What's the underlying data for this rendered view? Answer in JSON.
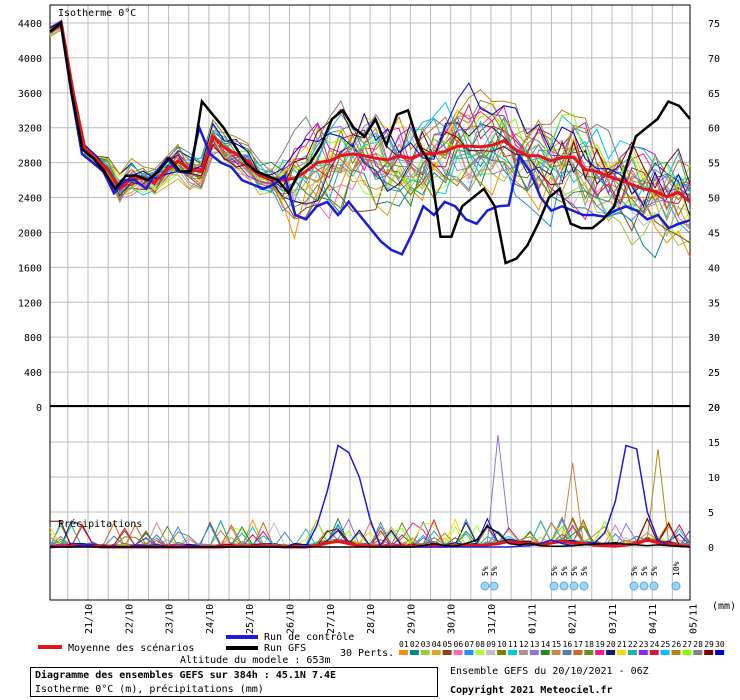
{
  "chart_data": [
    {
      "type": "line",
      "title": "Isotherme 0°C",
      "y_left_range": [
        0,
        4400
      ],
      "y_left_ticks": [
        0,
        400,
        800,
        1200,
        1600,
        2000,
        2400,
        2800,
        3200,
        3600,
        4000,
        4400
      ],
      "y_right_ticks": [
        20,
        25,
        30,
        35,
        40,
        45,
        50,
        55,
        60,
        65,
        70,
        75
      ],
      "x_labels": [
        "21/10",
        "22/10",
        "23/10",
        "24/10",
        "25/10",
        "26/10",
        "27/10",
        "28/10",
        "29/10",
        "30/10",
        "31/10",
        "01/11",
        "02/11",
        "03/11",
        "04/11",
        "05/11"
      ],
      "grid": true,
      "series": [
        {
          "name": "Moyenne des scénarios",
          "color": "#e8141b",
          "values": [
            4300,
            4380,
            3600,
            2960,
            2840,
            2720,
            2500,
            2620,
            2620,
            2570,
            2720,
            2820,
            2720,
            2700,
            3100,
            2970,
            2900,
            2820,
            2650,
            2620,
            2600,
            2620,
            2700,
            2800,
            2820,
            2880,
            2900,
            2880,
            2850,
            2830,
            2880,
            2850,
            2900,
            2900,
            2930,
            2990,
            2990,
            2980,
            3000,
            3050,
            2950,
            2880,
            2880,
            2820,
            2860,
            2860,
            2720,
            2700,
            2640,
            2600,
            2550,
            2500,
            2470,
            2410,
            2460,
            2350
          ]
        },
        {
          "name": "Run de contrôle",
          "color": "#1b1bde",
          "values": [
            4300,
            4400,
            3600,
            2900,
            2800,
            2700,
            2450,
            2600,
            2600,
            2500,
            2700,
            2850,
            2700,
            2680,
            3200,
            2900,
            2800,
            2750,
            2600,
            2550,
            2500,
            2550,
            2650,
            2200,
            2150,
            2300,
            2350,
            2200,
            2350,
            2200,
            2050,
            1900,
            1800,
            1750,
            2000,
            2300,
            2200,
            2350,
            2300,
            2150,
            2100,
            2250,
            2300,
            2310,
            2880,
            2700,
            2400,
            2250,
            2300,
            2250,
            2200,
            2200,
            2180,
            2250,
            2300,
            2250,
            2150,
            2200,
            2050,
            2100,
            2140
          ]
        },
        {
          "name": "Run GFS",
          "color": "#000000",
          "values": [
            4300,
            4400,
            3600,
            2950,
            2850,
            2700,
            2500,
            2650,
            2650,
            2600,
            2700,
            2850,
            2700,
            2700,
            3500,
            3350,
            3200,
            3000,
            2800,
            2700,
            2650,
            2600,
            2450,
            2700,
            2800,
            3000,
            3300,
            3400,
            3200,
            3100,
            3300,
            3000,
            3350,
            3400,
            3000,
            2800,
            1950,
            1950,
            2300,
            2400,
            2500,
            2300,
            1650,
            1700,
            1850,
            2100,
            2400,
            2500,
            2100,
            2050,
            2050,
            2150,
            2300,
            2700,
            3100,
            3200,
            3300,
            3500,
            3450,
            3300
          ]
        }
      ]
    },
    {
      "type": "line",
      "title": "Précipitations",
      "y_right_range": [
        0,
        20
      ],
      "y_right_ticks": [
        0,
        5,
        10,
        15,
        20
      ],
      "y_left_ticks": [
        0
      ],
      "x_labels": [
        "21/10",
        "22/10",
        "23/10",
        "24/10",
        "25/10",
        "26/10",
        "27/10",
        "28/10",
        "29/10",
        "30/10",
        "31/10",
        "01/11",
        "02/11",
        "03/11",
        "04/11",
        "05/11"
      ],
      "unit": "(mm)",
      "snow_labels": [
        "5%",
        "5%",
        "5%",
        "5%",
        "5%",
        "5%",
        "5%",
        "5%",
        "5%",
        "10%"
      ],
      "series": [
        {
          "name": "Moyenne des scénarios",
          "color": "#e8141b",
          "values": [
            0,
            0.1,
            0.1,
            0.2,
            0.1,
            0,
            0,
            0,
            0,
            0,
            0,
            0,
            0,
            0,
            0,
            0,
            0,
            0.1,
            0.1,
            0.1,
            0.1,
            0.1,
            0,
            0,
            0,
            0.2,
            0.6,
            0.8,
            0.5,
            0.2,
            0.1,
            0.1,
            0.1,
            0.1,
            0.1,
            0.1,
            0.1,
            0.1,
            0.2,
            0.2,
            0.2,
            0.3,
            0.5,
            0.8,
            0.6,
            0.5,
            0.3,
            0.6,
            0.8,
            0.6,
            0.5,
            0.3,
            0.2,
            0.1,
            0.3,
            0.5,
            1.0,
            0.6,
            0.5,
            0.2,
            0.1
          ]
        },
        {
          "name": "Run de contrôle",
          "color": "#1b1bde",
          "values": [
            0,
            0,
            0,
            0.3,
            0.1,
            0,
            0,
            0,
            0,
            0,
            0,
            0,
            0,
            0,
            0,
            0,
            0,
            0,
            0,
            0,
            0,
            0,
            0,
            0,
            0,
            3.0,
            8.0,
            14.5,
            13.5,
            10.0,
            4.0,
            0,
            0,
            0,
            0,
            0,
            0,
            0,
            0,
            0,
            0,
            0,
            0,
            0,
            0.1,
            0.2,
            0.5,
            1.0,
            0.5,
            0.2,
            0.3,
            0.5,
            2.0,
            6.5,
            14.5,
            14.0,
            5.0,
            1.0,
            0.2,
            0.1,
            0
          ]
        },
        {
          "name": "Run GFS",
          "color": "#000000",
          "values": [
            0,
            0,
            0,
            0,
            0,
            0,
            0,
            0,
            0,
            0,
            0,
            0,
            0,
            0,
            0,
            0,
            0,
            0,
            0,
            0,
            0,
            0,
            0,
            0,
            0,
            0,
            0,
            0,
            0,
            0,
            0,
            0,
            0,
            0,
            0,
            0.2,
            0.5,
            0.2,
            0.1,
            0.5,
            1.0,
            3.0,
            2.0,
            0.5,
            0.3,
            0.5,
            0.2,
            0.1,
            0.1,
            0.2,
            0.3,
            0.4,
            0.5,
            0.6,
            0.4,
            0.3,
            0.2,
            0.3,
            0.2,
            0.1,
            0
          ]
        }
      ]
    }
  ],
  "legend": {
    "mean": "Moyenne des scénarios",
    "control": "Run de contrôle",
    "gfs": "Run GFS",
    "perts_label": "30 Perts.",
    "pert_numbers": [
      "01",
      "02",
      "03",
      "04",
      "05",
      "06",
      "07",
      "08",
      "09",
      "10",
      "11",
      "12",
      "13",
      "14",
      "15",
      "16",
      "17",
      "18",
      "19",
      "20",
      "21",
      "22",
      "23",
      "24",
      "25",
      "26",
      "27",
      "28",
      "29",
      "30"
    ],
    "pert_colors": [
      "#ff8c00",
      "#008b8b",
      "#9acd32",
      "#daa520",
      "#8b4513",
      "#ff69b4",
      "#1e90ff",
      "#adff2f",
      "#c0c0c0",
      "#808000",
      "#00ced1",
      "#bc8f8f",
      "#9370db",
      "#228b22",
      "#cd853f",
      "#4682b4",
      "#d2691e",
      "#6b8e23",
      "#ff1493",
      "#191970",
      "#ffd700",
      "#20b2aa",
      "#8a2be2",
      "#dc143c",
      "#00bfff",
      "#b8860b",
      "#7fff00",
      "#808080",
      "#800000",
      "#0000cd"
    ]
  },
  "footer": {
    "title": "Diagramme des ensembles GEFS sur 384h : 45.1N 7.4E",
    "subtitle": "Isotherme 0°C (m), précipitations (mm)",
    "altitude": "Altitude du modele : 653m",
    "ensemble": "Ensemble GEFS du 20/10/2021 - 06Z",
    "copyright": "Copyright 2021 Meteociel.fr"
  }
}
